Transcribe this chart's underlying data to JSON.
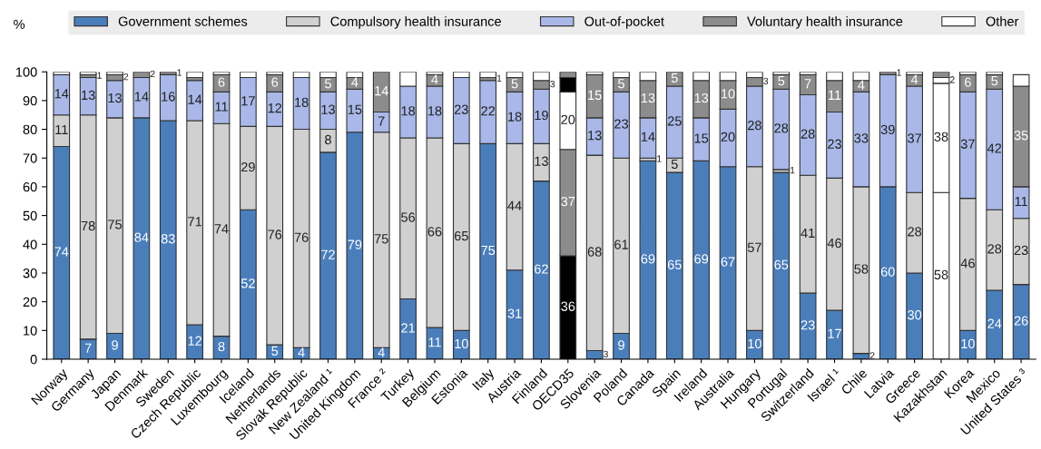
{
  "chart_data": {
    "type": "bar",
    "stacked": true,
    "ylabel": "%",
    "legend": "top",
    "categories": [
      "Norway",
      "Germany",
      "Japan",
      "Denmark",
      "Sweden",
      "Czech Republic",
      "Luxembourg",
      "Iceland",
      "Netherlands",
      "Slovak Republic",
      "New Zealand ¹",
      "United Kingdom",
      "France ²",
      "Turkey",
      "Belgium",
      "Estonia",
      "Italy",
      "Austria",
      "Finland",
      "OECD35",
      "Slovenia",
      "Poland",
      "Canada",
      "Spain",
      "Ireland",
      "Australia",
      "Hungary",
      "Portugal",
      "Switzerland",
      "Israel ¹",
      "Chile",
      "Latvia",
      "Greece",
      "Kazakhstan",
      "Korea",
      "Mexico",
      "United States ³"
    ],
    "ylim": [
      0,
      100
    ],
    "yticks": [
      0,
      10,
      20,
      30,
      40,
      50,
      60,
      70,
      80,
      90,
      100
    ],
    "grid": false,
    "series": [
      {
        "name": "Government schemes",
        "color": "#4a7ebb",
        "values": [
          74,
          7,
          9,
          84,
          83,
          12,
          8,
          52,
          5,
          4,
          72,
          79,
          4,
          21,
          11,
          10,
          75,
          31,
          62,
          36,
          3,
          9,
          69,
          65,
          69,
          67,
          10,
          65,
          23,
          17,
          2,
          60,
          30,
          58,
          10,
          24,
          26
        ],
        "colors": [
          "#4a7ebb",
          "#4a7ebb",
          "#4a7ebb",
          "#4a7ebb",
          "#4a7ebb",
          "#4a7ebb",
          "#4a7ebb",
          "#4a7ebb",
          "#4a7ebb",
          "#4a7ebb",
          "#4a7ebb",
          "#4a7ebb",
          "#4a7ebb",
          "#4a7ebb",
          "#4a7ebb",
          "#4a7ebb",
          "#4a7ebb",
          "#4a7ebb",
          "#4a7ebb",
          "#000000",
          "#4a7ebb",
          "#4a7ebb",
          "#4a7ebb",
          "#4a7ebb",
          "#4a7ebb",
          "#4a7ebb",
          "#4a7ebb",
          "#4a7ebb",
          "#4a7ebb",
          "#4a7ebb",
          "#4a7ebb",
          "#4a7ebb",
          "#4a7ebb",
          "#ffffff",
          "#4a7ebb",
          "#4a7ebb",
          "#4a7ebb"
        ],
        "value_labels": [
          "74",
          "7",
          "9",
          "84",
          "83",
          "12",
          "8",
          "52",
          "5",
          "4",
          "72",
          "79",
          "4",
          "21",
          "11",
          "10",
          "75",
          "31",
          "62",
          "36",
          "3",
          "9",
          "69",
          "65",
          "69",
          "67",
          "10",
          "65",
          "23",
          "17",
          "2",
          "60",
          "30",
          "58",
          "10",
          "24",
          "26"
        ]
      },
      {
        "name": "Compulsory health insurance",
        "color": "#d0d0d0",
        "values": [
          11,
          78,
          75,
          0,
          0,
          71,
          74,
          29,
          76,
          76,
          8,
          0,
          75,
          56,
          66,
          65,
          0,
          44,
          13,
          37,
          68,
          61,
          1,
          5,
          0,
          0,
          57,
          1,
          41,
          46,
          58,
          0,
          28,
          0,
          46,
          28,
          23
        ],
        "colors": [
          "#d0d0d0",
          "#d0d0d0",
          "#d0d0d0",
          "#d0d0d0",
          "#d0d0d0",
          "#d0d0d0",
          "#d0d0d0",
          "#d0d0d0",
          "#d0d0d0",
          "#d0d0d0",
          "#d0d0d0",
          "#d0d0d0",
          "#d0d0d0",
          "#d0d0d0",
          "#d0d0d0",
          "#d0d0d0",
          "#d0d0d0",
          "#d0d0d0",
          "#d0d0d0",
          "#8c8c8c",
          "#d0d0d0",
          "#d0d0d0",
          "#d0d0d0",
          "#d0d0d0",
          "#d0d0d0",
          "#d0d0d0",
          "#d0d0d0",
          "#d0d0d0",
          "#d0d0d0",
          "#d0d0d0",
          "#d0d0d0",
          "#d0d0d0",
          "#d0d0d0",
          "#ffffff",
          "#d0d0d0",
          "#d0d0d0",
          "#d0d0d0"
        ],
        "value_labels": [
          "11",
          "78",
          "75",
          null,
          null,
          "71",
          "74",
          "29",
          "76",
          "76",
          "8",
          null,
          "75",
          "56",
          "66",
          "65",
          null,
          "44",
          "13",
          "37",
          "68",
          "61",
          "1",
          "5",
          null,
          null,
          "57",
          "1",
          "41",
          "46",
          "58",
          null,
          "28",
          null,
          "46",
          "28",
          "23"
        ]
      },
      {
        "name": "Out-of-pocket",
        "color": "#a9b8e8",
        "values": [
          14,
          13,
          13,
          14,
          16,
          14,
          11,
          17,
          12,
          18,
          13,
          15,
          7,
          18,
          18,
          23,
          22,
          18,
          19,
          20,
          13,
          23,
          14,
          25,
          15,
          20,
          28,
          28,
          28,
          23,
          33,
          39,
          37,
          38,
          37,
          42,
          11
        ],
        "colors": [
          "#a9b8e8",
          "#a9b8e8",
          "#a9b8e8",
          "#a9b8e8",
          "#a9b8e8",
          "#a9b8e8",
          "#a9b8e8",
          "#a9b8e8",
          "#a9b8e8",
          "#a9b8e8",
          "#a9b8e8",
          "#a9b8e8",
          "#a9b8e8",
          "#a9b8e8",
          "#a9b8e8",
          "#a9b8e8",
          "#a9b8e8",
          "#a9b8e8",
          "#a9b8e8",
          "#ffffff",
          "#a9b8e8",
          "#a9b8e8",
          "#a9b8e8",
          "#a9b8e8",
          "#a9b8e8",
          "#a9b8e8",
          "#a9b8e8",
          "#a9b8e8",
          "#a9b8e8",
          "#a9b8e8",
          "#a9b8e8",
          "#a9b8e8",
          "#a9b8e8",
          "#ffffff",
          "#a9b8e8",
          "#a9b8e8",
          "#a9b8e8"
        ],
        "value_labels": [
          "14",
          "13",
          "13",
          "14",
          "16",
          "14",
          "11",
          "17",
          "12",
          "18",
          "13",
          "15",
          "7",
          "18",
          "18",
          "23",
          "22",
          "18",
          "19",
          "20",
          "13",
          "23",
          "14",
          "25",
          "15",
          "20",
          "28",
          "28",
          "28",
          "23",
          "33",
          "39",
          "37",
          "38",
          "37",
          "42",
          "11"
        ]
      },
      {
        "name": "Voluntary health insurance",
        "color": "#8c8c8c",
        "values": [
          0,
          1,
          2,
          2,
          1,
          1,
          6,
          0,
          6,
          0,
          5,
          4,
          14,
          0,
          4,
          0,
          1,
          5,
          3,
          5,
          15,
          5,
          13,
          5,
          13,
          10,
          3,
          5,
          7,
          11,
          4,
          1,
          4,
          2,
          6,
          5,
          35
        ],
        "colors": [
          "#8c8c8c",
          "#8c8c8c",
          "#8c8c8c",
          "#8c8c8c",
          "#8c8c8c",
          "#8c8c8c",
          "#8c8c8c",
          "#8c8c8c",
          "#8c8c8c",
          "#8c8c8c",
          "#8c8c8c",
          "#8c8c8c",
          "#8c8c8c",
          "#8c8c8c",
          "#8c8c8c",
          "#8c8c8c",
          "#8c8c8c",
          "#8c8c8c",
          "#8c8c8c",
          "#000000",
          "#8c8c8c",
          "#8c8c8c",
          "#8c8c8c",
          "#8c8c8c",
          "#8c8c8c",
          "#8c8c8c",
          "#8c8c8c",
          "#8c8c8c",
          "#8c8c8c",
          "#8c8c8c",
          "#8c8c8c",
          "#8c8c8c",
          "#8c8c8c",
          "#ffffff",
          "#8c8c8c",
          "#8c8c8c",
          "#8c8c8c"
        ],
        "value_labels": [
          null,
          "1",
          "2",
          "2",
          "1",
          null,
          "6",
          null,
          "6",
          null,
          "5",
          "4",
          "14",
          null,
          "4",
          null,
          "1",
          "5",
          "3",
          null,
          "15",
          "5",
          "13",
          "5",
          "13",
          "10",
          "3",
          "5",
          "7",
          "11",
          "4",
          "1",
          "4",
          "2",
          "6",
          "5",
          "35"
        ]
      },
      {
        "name": "Other",
        "color": "#ffffff",
        "values": [
          1,
          1,
          1,
          0,
          0,
          2,
          1,
          2,
          1,
          2,
          2,
          2,
          0,
          5,
          1,
          2,
          2,
          2,
          3,
          2,
          1,
          2,
          3,
          0,
          3,
          3,
          2,
          1,
          1,
          3,
          3,
          0,
          1,
          2,
          1,
          1,
          4
        ],
        "colors": [
          "#ffffff",
          "#ffffff",
          "#ffffff",
          "#ffffff",
          "#ffffff",
          "#ffffff",
          "#ffffff",
          "#ffffff",
          "#ffffff",
          "#ffffff",
          "#ffffff",
          "#ffffff",
          "#ffffff",
          "#ffffff",
          "#ffffff",
          "#ffffff",
          "#ffffff",
          "#ffffff",
          "#ffffff",
          "#8c8c8c",
          "#ffffff",
          "#ffffff",
          "#ffffff",
          "#ffffff",
          "#ffffff",
          "#ffffff",
          "#ffffff",
          "#ffffff",
          "#ffffff",
          "#ffffff",
          "#ffffff",
          "#ffffff",
          "#ffffff",
          "#8c8c8c",
          "#ffffff",
          "#ffffff",
          "#ffffff"
        ]
      }
    ]
  }
}
